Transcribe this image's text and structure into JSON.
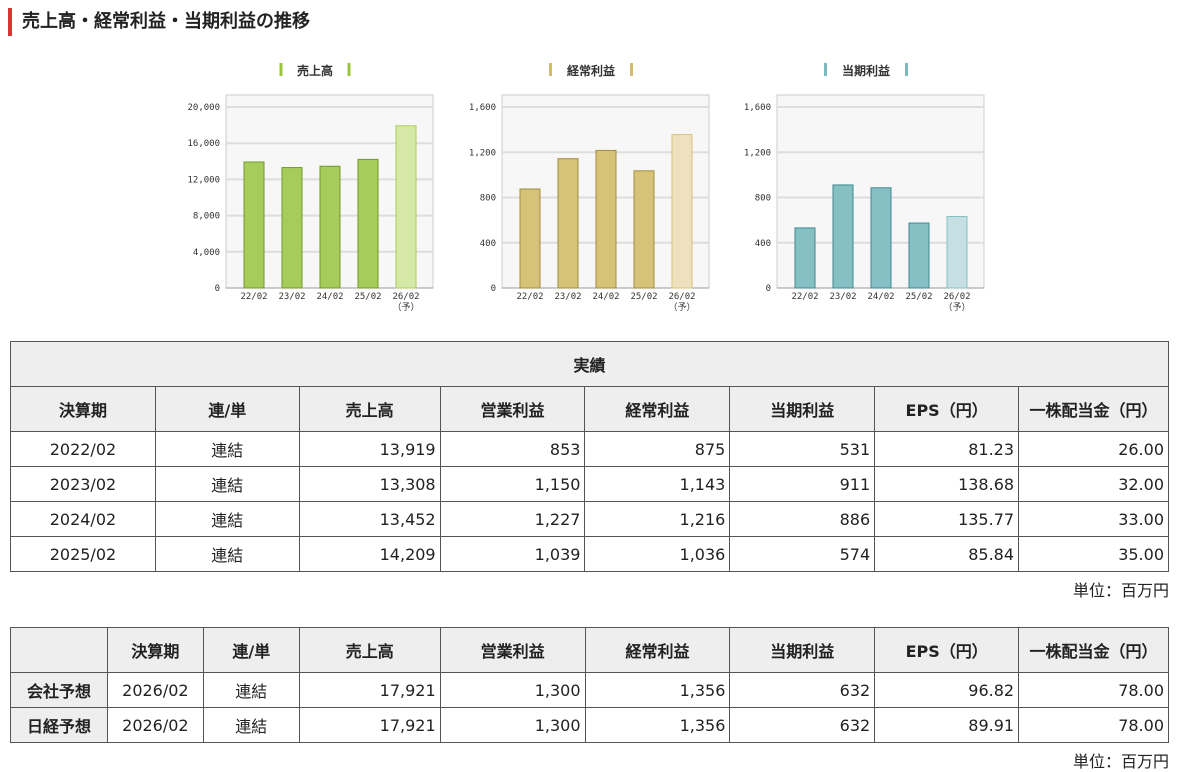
{
  "title": "売上高・経常利益・当期利益の推移",
  "chart_data": [
    {
      "type": "bar",
      "title": "売上高",
      "categories": [
        "22/02",
        "23/02",
        "24/02",
        "25/02",
        "26/02"
      ],
      "forecast_mark": "（予）",
      "values": [
        13919,
        13308,
        13452,
        14209,
        17921
      ],
      "yticks": [
        "0",
        "4,000",
        "8,000",
        "12,000",
        "16,000",
        "20,000"
      ],
      "ylim": [
        0,
        20000
      ],
      "color": "#a8cc5a",
      "forecast_color": "#d6e8a8",
      "edge": "#6f9a2a",
      "title_color": "#9ac43c"
    },
    {
      "type": "bar",
      "title": "経常利益",
      "categories": [
        "22/02",
        "23/02",
        "24/02",
        "25/02",
        "26/02"
      ],
      "forecast_mark": "（予）",
      "values": [
        875,
        1143,
        1216,
        1036,
        1356
      ],
      "yticks": [
        "0",
        "400",
        "800",
        "1,200",
        "1,600"
      ],
      "ylim": [
        0,
        1600
      ],
      "color": "#d7c27a",
      "forecast_color": "#ede2bd",
      "edge": "#a08c3e",
      "title_color": "#d2bd6a"
    },
    {
      "type": "bar",
      "title": "当期利益",
      "categories": [
        "22/02",
        "23/02",
        "24/02",
        "25/02",
        "26/02"
      ],
      "forecast_mark": "（予）",
      "values": [
        531,
        911,
        886,
        574,
        632
      ],
      "yticks": [
        "0",
        "400",
        "800",
        "1,200",
        "1,600"
      ],
      "ylim": [
        0,
        1600
      ],
      "color": "#86bfc4",
      "forecast_color": "#c5dfe2",
      "edge": "#3f8891",
      "title_color": "#7bb8bf"
    }
  ],
  "actual": {
    "caption": "実績",
    "headers": [
      "決算期",
      "連/単",
      "売上高",
      "営業利益",
      "経常利益",
      "当期利益",
      "EPS（円）",
      "一株配当金（円）"
    ],
    "rows": [
      [
        "2022/02",
        "連結",
        "13,919",
        "853",
        "875",
        "531",
        "81.23",
        "26.00"
      ],
      [
        "2023/02",
        "連結",
        "13,308",
        "1,150",
        "1,143",
        "911",
        "138.68",
        "32.00"
      ],
      [
        "2024/02",
        "連結",
        "13,452",
        "1,227",
        "1,216",
        "886",
        "135.77",
        "33.00"
      ],
      [
        "2025/02",
        "連結",
        "14,209",
        "1,039",
        "1,036",
        "574",
        "85.84",
        "35.00"
      ]
    ],
    "unit": "単位：百万円"
  },
  "forecast": {
    "headers": [
      "",
      "決算期",
      "連/単",
      "売上高",
      "営業利益",
      "経常利益",
      "当期利益",
      "EPS（円）",
      "一株配当金（円）"
    ],
    "rows": [
      [
        "会社予想",
        "2026/02",
        "連結",
        "17,921",
        "1,300",
        "1,356",
        "632",
        "96.82",
        "78.00"
      ],
      [
        "日経予想",
        "2026/02",
        "連結",
        "17,921",
        "1,300",
        "1,356",
        "632",
        "89.91",
        "78.00"
      ]
    ],
    "unit": "単位：百万円"
  }
}
